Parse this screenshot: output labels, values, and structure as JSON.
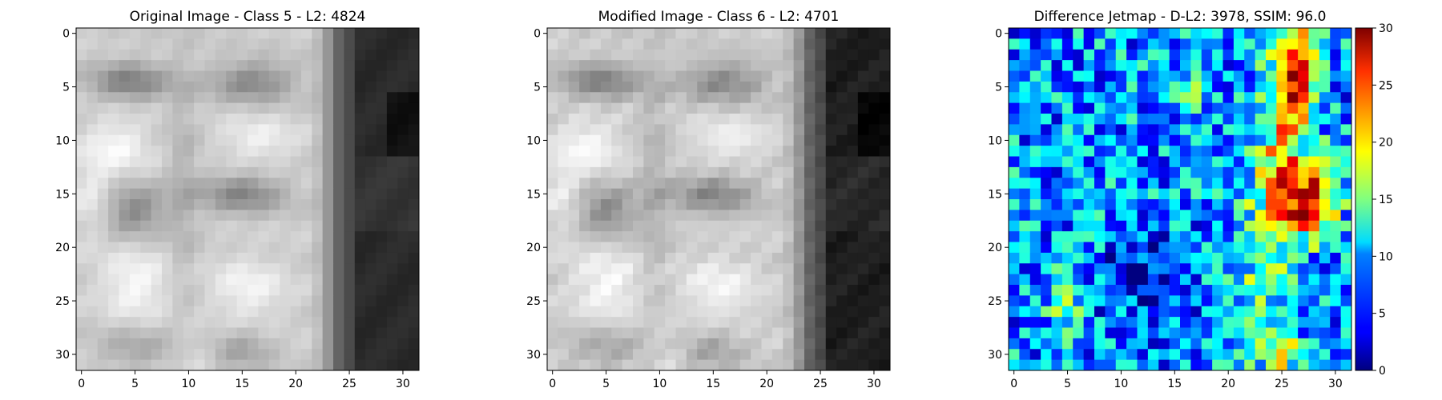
{
  "chart_data": [
    {
      "type": "heatmap",
      "title": "Original Image - Class 5 - L2: 4824",
      "title_color": "#000000",
      "colormap": "gray",
      "grid_size": [
        32,
        32
      ],
      "xticks": [
        0,
        5,
        10,
        15,
        20,
        25,
        30
      ],
      "yticks": [
        0,
        5,
        10,
        15,
        20,
        25,
        30
      ],
      "xlim": [
        0,
        31
      ],
      "ylim": [
        31,
        0
      ],
      "value_range": [
        0,
        255
      ]
    },
    {
      "type": "heatmap",
      "title": "Modified Image - Class 6 - L2: 4701",
      "title_color": "#ff0000",
      "colormap": "gray",
      "grid_size": [
        32,
        32
      ],
      "xticks": [
        0,
        5,
        10,
        15,
        20,
        25,
        30
      ],
      "yticks": [
        0,
        5,
        10,
        15,
        20,
        25,
        30
      ],
      "xlim": [
        0,
        31
      ],
      "ylim": [
        31,
        0
      ],
      "value_range": [
        0,
        255
      ]
    },
    {
      "type": "heatmap",
      "title": "Difference Jetmap - D-L2: 3978, SSIM: 96.0",
      "title_color": "#000000",
      "colormap": "jet",
      "grid_size": [
        32,
        32
      ],
      "xticks": [
        0,
        5,
        10,
        15,
        20,
        25,
        30
      ],
      "yticks": [
        0,
        5,
        10,
        15,
        20,
        25,
        30
      ],
      "xlim": [
        0,
        31
      ],
      "ylim": [
        31,
        0
      ],
      "value_range": [
        0,
        30
      ],
      "colorbar": {
        "ticks": [
          0,
          5,
          10,
          15,
          20,
          25,
          30
        ],
        "min": 0,
        "max": 30
      }
    }
  ]
}
